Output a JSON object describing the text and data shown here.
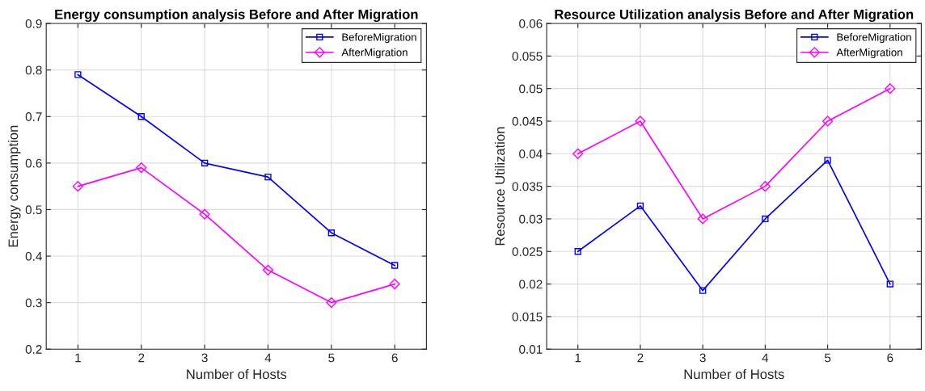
{
  "chart_data": [
    {
      "type": "line",
      "title": "Energy consumption analysis Before and After Migration",
      "xlabel": "Number of Hosts",
      "ylabel": "Energy consumption",
      "x": [
        1,
        2,
        3,
        4,
        5,
        6
      ],
      "xlim": [
        0.5,
        6.5
      ],
      "xticks": [
        1,
        2,
        3,
        4,
        5,
        6
      ],
      "ylim": [
        0.2,
        0.9
      ],
      "yticks": [
        0.2,
        0.3,
        0.4,
        0.5,
        0.6,
        0.7,
        0.8,
        0.9
      ],
      "grid": true,
      "legend": "top right",
      "series": [
        {
          "name": "BeforeMigration",
          "color": "#0000ff",
          "marker": "square",
          "values": [
            0.79,
            0.7,
            0.6,
            0.57,
            0.45,
            0.38
          ]
        },
        {
          "name": "AfterMigration",
          "color": "#ff00ff",
          "marker": "diamond",
          "values": [
            0.55,
            0.59,
            0.49,
            0.37,
            0.3,
            0.34
          ]
        }
      ]
    },
    {
      "type": "line",
      "title": "Resource Utilization analysis Before and After Migration",
      "xlabel": "Number of Hosts",
      "ylabel": "Resource Utilization",
      "x": [
        1,
        2,
        3,
        4,
        5,
        6
      ],
      "xlim": [
        0.5,
        6.5
      ],
      "xticks": [
        1,
        2,
        3,
        4,
        5,
        6
      ],
      "ylim": [
        0.01,
        0.06
      ],
      "yticks": [
        0.01,
        0.015,
        0.02,
        0.025,
        0.03,
        0.035,
        0.04,
        0.045,
        0.05,
        0.055,
        0.06
      ],
      "grid": true,
      "legend": "top right",
      "series": [
        {
          "name": "BeforeMigration",
          "color": "#0000ff",
          "marker": "square",
          "values": [
            0.025,
            0.032,
            0.019,
            0.03,
            0.039,
            0.02
          ]
        },
        {
          "name": "AfterMigration",
          "color": "#ff00ff",
          "marker": "diamond",
          "values": [
            0.04,
            0.045,
            0.03,
            0.035,
            0.045,
            0.05
          ]
        }
      ]
    }
  ]
}
